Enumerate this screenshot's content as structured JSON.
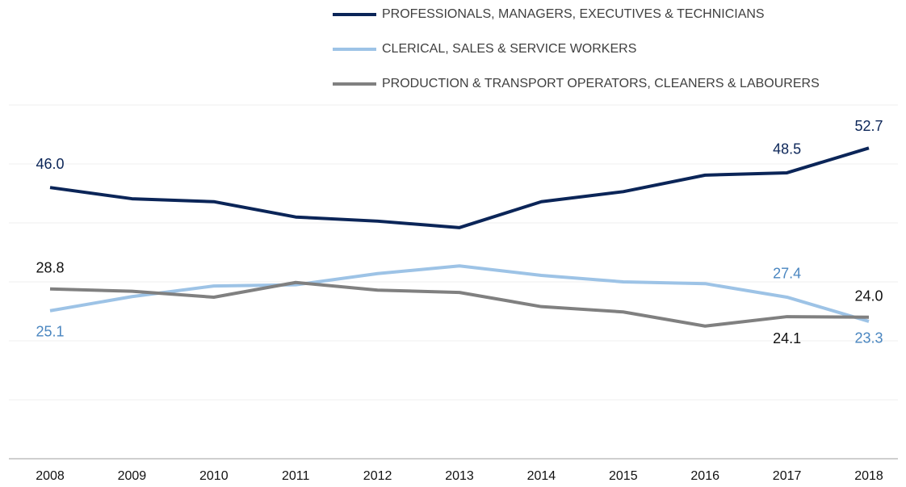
{
  "chart_data": {
    "type": "line",
    "categories": [
      "2008",
      "2009",
      "2010",
      "2011",
      "2012",
      "2013",
      "2014",
      "2015",
      "2016",
      "2017",
      "2018"
    ],
    "series": [
      {
        "name": "PROFESSIONALS, MANAGERS, EXECUTIVES & TECHNICIANS",
        "color": "#0b2558",
        "values": [
          46.0,
          44.1,
          43.6,
          41.0,
          40.3,
          39.2,
          43.6,
          45.3,
          48.1,
          48.5,
          52.7
        ],
        "value_labels": [
          "46.0",
          null,
          null,
          null,
          null,
          null,
          null,
          null,
          null,
          "48.5",
          "52.7"
        ]
      },
      {
        "name": "CLERICAL, SALES & SERVICE WORKERS",
        "color": "#9dc3e6",
        "values": [
          25.1,
          27.5,
          29.3,
          29.5,
          31.4,
          32.7,
          31.1,
          30.0,
          29.7,
          27.4,
          23.3
        ],
        "value_labels": [
          "25.1",
          null,
          null,
          null,
          null,
          null,
          null,
          null,
          null,
          "27.4",
          "23.3"
        ]
      },
      {
        "name": "PRODUCTION & TRANSPORT OPERATORS, CLEANERS & LABOURERS",
        "color": "#808080",
        "values": [
          28.8,
          28.4,
          27.4,
          29.9,
          28.6,
          28.2,
          25.8,
          24.9,
          22.5,
          24.1,
          24.0
        ],
        "value_labels": [
          "28.8",
          null,
          null,
          null,
          null,
          null,
          null,
          null,
          null,
          "24.1",
          "24.0"
        ]
      }
    ],
    "ylim": [
      0,
      60
    ],
    "yticks": [
      0,
      10,
      20,
      30,
      40,
      50,
      60
    ],
    "grid": true,
    "legend": "top"
  }
}
